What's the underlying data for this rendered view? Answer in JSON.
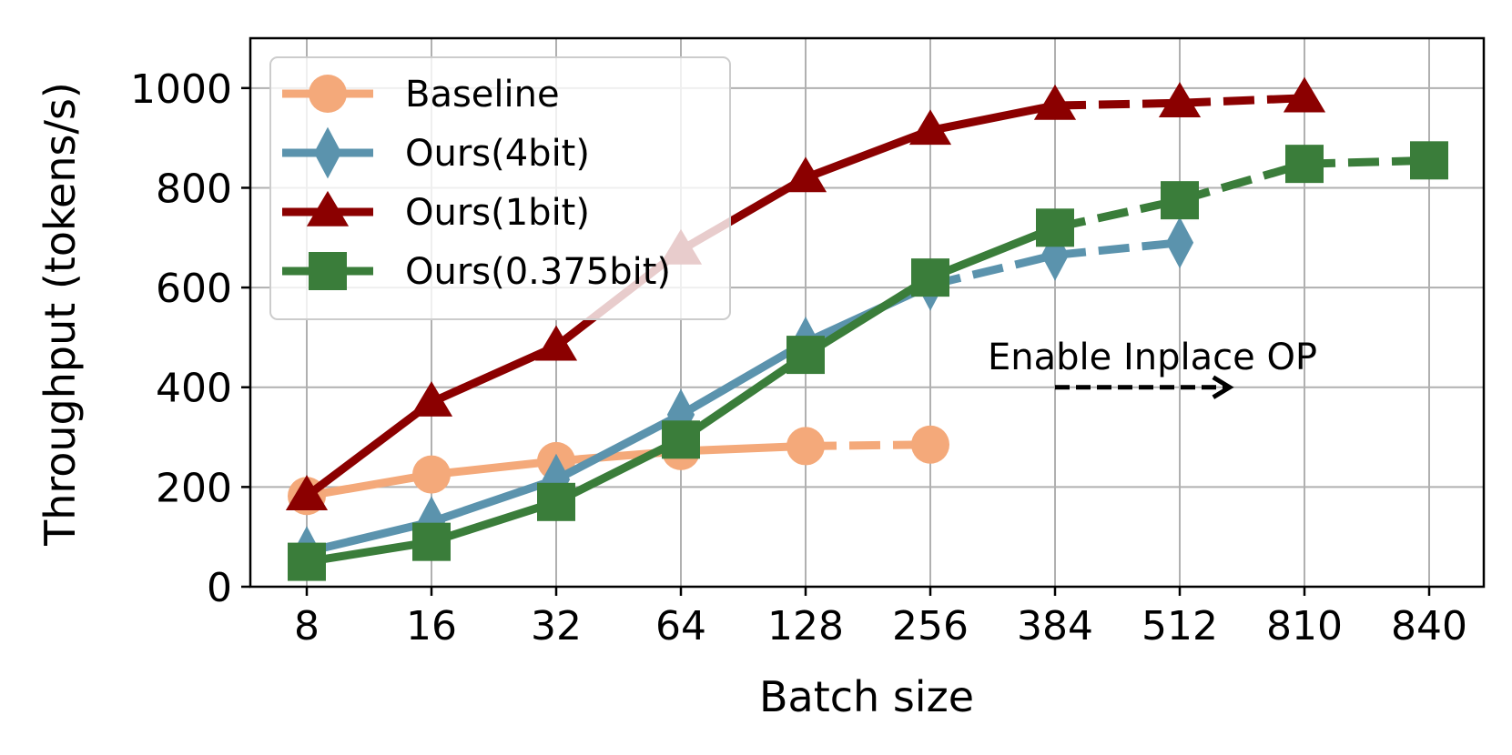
{
  "chart_data": {
    "type": "line",
    "xlabel": "Batch size",
    "ylabel": "Throughput (tokens/s)",
    "categories": [
      "8",
      "16",
      "32",
      "64",
      "128",
      "256",
      "384",
      "512",
      "810",
      "840"
    ],
    "ylim": [
      0,
      1100
    ],
    "yticks": [
      0,
      200,
      400,
      600,
      800,
      1000
    ],
    "grid": true,
    "legend_position": "top-left",
    "series": [
      {
        "name": "Baseline",
        "color": "#F4A97A",
        "marker": "circle",
        "values": [
          182,
          225,
          252,
          272,
          282,
          285,
          null,
          null,
          null,
          null
        ],
        "dashed_from_index": 4
      },
      {
        "name": "Ours(4bit)",
        "color": "#5B93AD",
        "marker": "diamond",
        "values": [
          70,
          130,
          215,
          345,
          490,
          605,
          665,
          690,
          null,
          null
        ],
        "dashed_from_index": 5
      },
      {
        "name": "Ours(1bit)",
        "color": "#8B0000",
        "marker": "triangle",
        "values": [
          182,
          370,
          482,
          675,
          820,
          915,
          965,
          970,
          980,
          null
        ],
        "dashed_from_index": 6
      },
      {
        "name": "Ours(0.375bit)",
        "color": "#3A7D3A",
        "marker": "square",
        "values": [
          50,
          90,
          170,
          295,
          465,
          620,
          720,
          775,
          848,
          855
        ],
        "dashed_from_index": 6
      }
    ],
    "annotation": {
      "text": "Enable Inplace OP",
      "arrow_from_category_index": 6,
      "arrow_to_category_index": 7.4,
      "arrow_y": 400
    }
  }
}
